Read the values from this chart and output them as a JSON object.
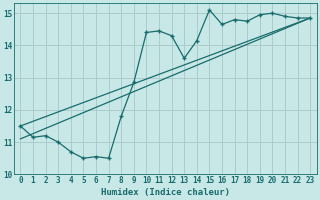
{
  "title": "",
  "xlabel": "Humidex (Indice chaleur)",
  "bg_color": "#c8e8e8",
  "grid_color": "#aacccc",
  "line_color": "#1a6b6b",
  "xlim": [
    -0.5,
    23.5
  ],
  "ylim": [
    10.0,
    15.3
  ],
  "yticks": [
    10,
    11,
    12,
    13,
    14,
    15
  ],
  "xticks": [
    0,
    1,
    2,
    3,
    4,
    5,
    6,
    7,
    8,
    9,
    10,
    11,
    12,
    13,
    14,
    15,
    16,
    17,
    18,
    19,
    20,
    21,
    22,
    23
  ],
  "curve1_x": [
    0,
    1,
    2,
    3,
    4,
    5,
    6,
    7,
    8,
    9,
    10,
    11,
    12,
    13,
    14,
    15,
    16,
    17,
    18,
    19,
    20,
    21,
    22,
    23
  ],
  "curve1_y": [
    11.5,
    11.15,
    11.2,
    11.0,
    10.7,
    10.5,
    10.55,
    10.5,
    11.8,
    12.85,
    14.4,
    14.45,
    14.3,
    13.6,
    14.15,
    15.1,
    14.65,
    14.8,
    14.75,
    14.95,
    15.0,
    14.9,
    14.85,
    14.85
  ],
  "line1_x": [
    0,
    23
  ],
  "line1_y": [
    11.1,
    14.85
  ],
  "line2_x": [
    0,
    23
  ],
  "line2_y": [
    11.5,
    14.85
  ]
}
